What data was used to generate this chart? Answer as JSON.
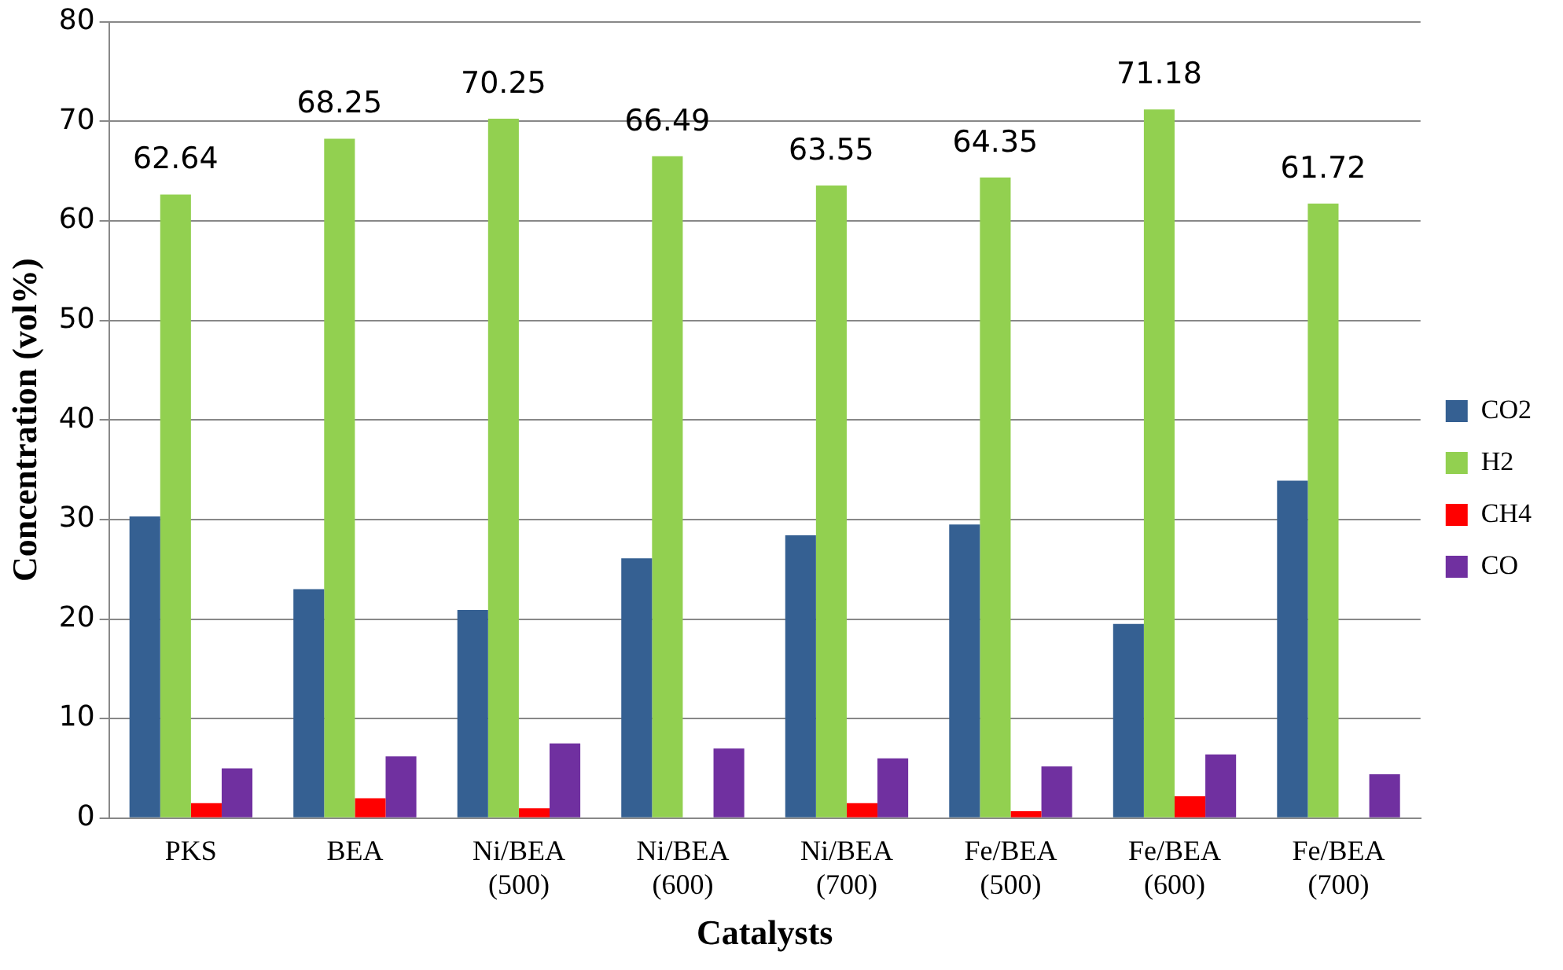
{
  "chart_data": {
    "type": "bar",
    "xlabel": "Catalysts",
    "ylabel": "Concentration (vol%)",
    "categories": [
      "PKS",
      "BEA",
      "Ni/BEA\n(500)",
      "Ni/BEA\n(600)",
      "Ni/BEA\n(700)",
      "Fe/BEA\n(500)",
      "Fe/BEA\n(600)",
      "Fe/BEA\n(700)"
    ],
    "series": [
      {
        "name": "CO2",
        "color": "#356092",
        "values": [
          30.3,
          23.0,
          20.9,
          26.1,
          28.4,
          29.5,
          19.5,
          33.9
        ]
      },
      {
        "name": "H2",
        "color": "#92d050",
        "values": [
          62.64,
          68.25,
          70.25,
          66.49,
          63.55,
          64.35,
          71.18,
          61.72
        ],
        "value_labels": [
          "62.64",
          "68.25",
          "70.25",
          "66.49",
          "63.55",
          "64.35",
          "71.18",
          "61.72"
        ]
      },
      {
        "name": "CH4",
        "color": "#ff0000",
        "values": [
          1.5,
          2.0,
          1.0,
          0,
          1.5,
          0.7,
          2.2,
          0
        ]
      },
      {
        "name": "CO",
        "color": "#7030a0",
        "values": [
          5.0,
          6.2,
          7.5,
          7.0,
          6.0,
          5.2,
          6.4,
          4.4
        ]
      }
    ],
    "ylim": [
      0,
      80
    ],
    "yticks": [
      0,
      10,
      20,
      30,
      40,
      50,
      60,
      70,
      80
    ],
    "grid": "y",
    "legend": "right"
  }
}
